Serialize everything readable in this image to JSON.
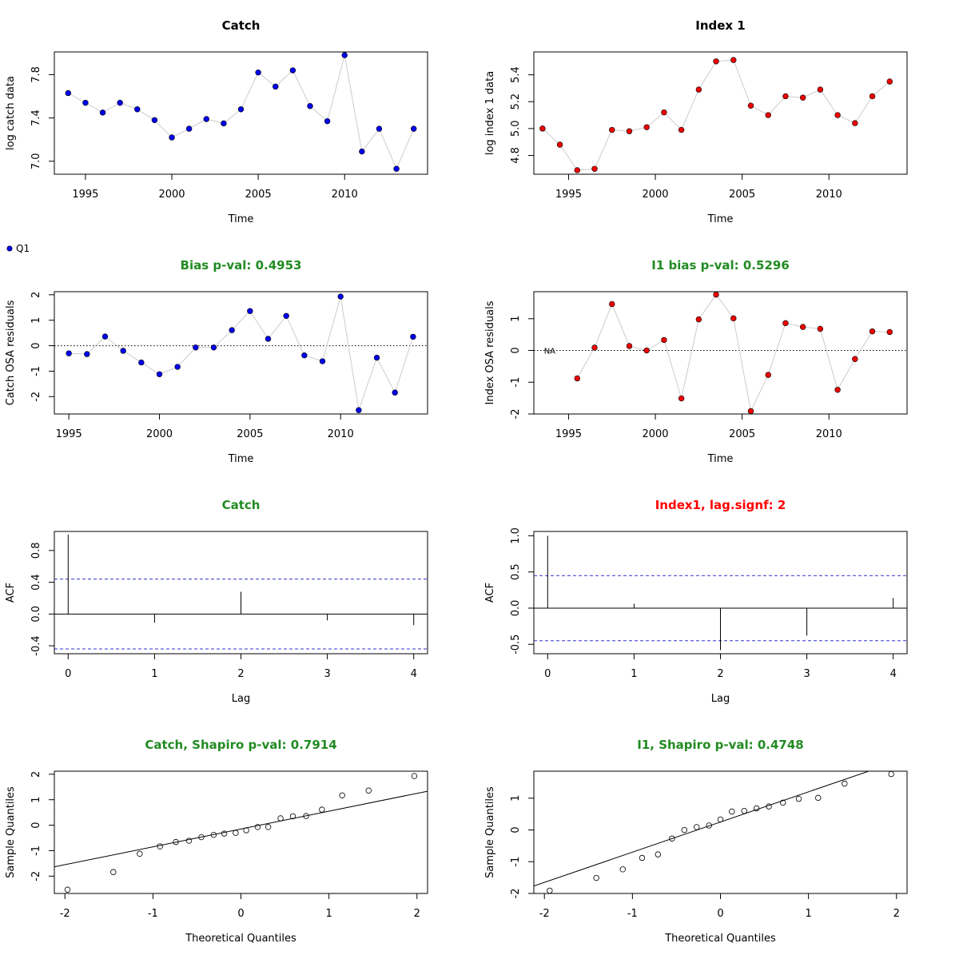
{
  "legend": {
    "label": "Q1",
    "color": "#0000ee",
    "placement": "top-left of second row"
  },
  "colors": {
    "catch_point": "#0000ee",
    "index_point": "#ee0000",
    "good_title": "#228b22",
    "bad_title": "#ff0000",
    "connector": "#cccccc",
    "ci_line": "#3333cc"
  },
  "chart_data": [
    {
      "id": "catch-data",
      "type": "line",
      "title": "Catch",
      "title_color": "#000000",
      "xlabel": "Time",
      "ylabel": "log catch data",
      "xlim": [
        1993.2,
        2014.8
      ],
      "ylim": [
        6.88,
        8.01
      ],
      "xticks": [
        1995,
        2000,
        2005,
        2010
      ],
      "xtick_labels": [
        "1995",
        "2000",
        "2005",
        "2010"
      ],
      "yticks": [
        7.0,
        7.4,
        7.8
      ],
      "ytick_labels": [
        "7.0",
        "7.4",
        "7.8"
      ],
      "point_color": "#0000ee",
      "series": [
        {
          "x": [
            1994,
            1995,
            1996,
            1997,
            1998,
            1999,
            2000,
            2001,
            2002,
            2003,
            2004,
            2005,
            2006,
            2007,
            2008,
            2009,
            2010,
            2011,
            2012,
            2013,
            2014
          ],
          "y": [
            7.63,
            7.54,
            7.45,
            7.54,
            7.48,
            7.38,
            7.22,
            7.3,
            7.39,
            7.35,
            7.48,
            7.82,
            7.69,
            7.84,
            7.51,
            7.37,
            7.98,
            7.09,
            7.3,
            6.93,
            7.3
          ]
        }
      ]
    },
    {
      "id": "index-data",
      "type": "line",
      "title": "Index 1",
      "title_color": "#000000",
      "xlabel": "Time",
      "ylabel": "log index 1 data",
      "xlim": [
        1993.0,
        2014.5
      ],
      "ylim": [
        4.66,
        5.57
      ],
      "xticks": [
        1995,
        2000,
        2005,
        2010
      ],
      "xtick_labels": [
        "1995",
        "2000",
        "2005",
        "2010"
      ],
      "yticks": [
        4.8,
        5.0,
        5.2,
        5.4
      ],
      "ytick_labels": [
        "4.8",
        "5.0",
        "5.2",
        "5.4"
      ],
      "point_color": "#ee0000",
      "series": [
        {
          "x": [
            1993.5,
            1994.5,
            1995.5,
            1996.5,
            1997.5,
            1998.5,
            1999.5,
            2000.5,
            2001.5,
            2002.5,
            2003.5,
            2004.5,
            2005.5,
            2006.5,
            2007.5,
            2008.5,
            2009.5,
            2010.5,
            2011.5,
            2012.5,
            2013.5
          ],
          "y": [
            5.0,
            4.88,
            4.69,
            4.7,
            4.99,
            4.98,
            5.01,
            5.12,
            4.99,
            5.29,
            5.5,
            5.51,
            5.17,
            5.1,
            5.24,
            5.23,
            5.29,
            5.1,
            5.04,
            5.24,
            5.35
          ]
        }
      ]
    },
    {
      "id": "catch-resid",
      "type": "line",
      "title": "Bias p-val: 0.4953",
      "title_color": "#228b22",
      "xlabel": "Time",
      "ylabel": "Catch OSA residuals",
      "xlim": [
        1994.2,
        2014.8
      ],
      "ylim": [
        -2.68,
        2.12
      ],
      "xticks": [
        1995,
        2000,
        2005,
        2010
      ],
      "xtick_labels": [
        "1995",
        "2000",
        "2005",
        "2010"
      ],
      "yticks": [
        -2,
        -1,
        0,
        1,
        2
      ],
      "ytick_labels": [
        "-2",
        "-1",
        "0",
        "1",
        "2"
      ],
      "point_color": "#0000ee",
      "hline": 0,
      "series": [
        {
          "x": [
            1995,
            1996,
            1997,
            1998,
            1999,
            2000,
            2001,
            2002,
            2003,
            2004,
            2005,
            2006,
            2007,
            2008,
            2009,
            2010,
            2011,
            2012,
            2013,
            2014
          ],
          "y": [
            -0.3,
            -0.33,
            0.36,
            -0.2,
            -0.66,
            -1.12,
            -0.83,
            -0.07,
            -0.07,
            0.61,
            1.36,
            0.27,
            1.17,
            -0.38,
            -0.61,
            1.93,
            -2.53,
            -0.47,
            -1.84,
            0.35
          ]
        }
      ]
    },
    {
      "id": "index-resid",
      "type": "line",
      "title": "I1 bias p-val: 0.5296",
      "title_color": "#228b22",
      "xlabel": "Time",
      "ylabel": "Index OSA residuals",
      "xlim": [
        1993.0,
        2014.5
      ],
      "ylim": [
        -2.0,
        1.85
      ],
      "xticks": [
        1995,
        2000,
        2005,
        2010
      ],
      "xtick_labels": [
        "1995",
        "2000",
        "2005",
        "2010"
      ],
      "yticks": [
        -2,
        -1,
        0,
        1
      ],
      "ytick_labels": [
        "-2",
        "-1",
        "0",
        "1"
      ],
      "point_color": "#ee0000",
      "hline": 0,
      "annotation": {
        "text": "NA",
        "x": 1993.4,
        "y": 0
      },
      "series": [
        {
          "x": [
            1995.5,
            1996.5,
            1997.5,
            1998.5,
            1999.5,
            2000.5,
            2001.5,
            2002.5,
            2003.5,
            2004.5,
            2005.5,
            2006.5,
            2007.5,
            2008.5,
            2009.5,
            2010.5,
            2011.5,
            2012.5,
            2013.5
          ],
          "y": [
            -0.88,
            0.09,
            1.46,
            0.14,
            0.0,
            0.33,
            -1.51,
            0.98,
            1.76,
            1.01,
            -1.91,
            -0.77,
            0.86,
            0.74,
            0.68,
            -1.24,
            -0.27,
            0.6,
            0.58
          ]
        }
      ]
    },
    {
      "id": "catch-acf",
      "type": "bar",
      "title": "Catch",
      "title_color": "#228b22",
      "xlabel": "Lag",
      "ylabel": "ACF",
      "xlim": [
        -0.16,
        4.16
      ],
      "ylim": [
        -0.5,
        1.04
      ],
      "xticks": [
        0,
        1,
        2,
        3,
        4
      ],
      "xtick_labels": [
        "0",
        "1",
        "2",
        "3",
        "4"
      ],
      "yticks": [
        -0.4,
        0.0,
        0.4,
        0.8
      ],
      "ytick_labels": [
        "-0.4",
        "0.0",
        "0.4",
        "0.8"
      ],
      "hline": 0,
      "ci": 0.44,
      "lags": [
        0,
        1,
        2,
        3,
        4
      ],
      "values": [
        1.0,
        -0.11,
        0.28,
        -0.08,
        -0.14
      ]
    },
    {
      "id": "index-acf",
      "type": "bar",
      "title": "Index1, lag.signf: 2",
      "title_color": "#ff0000",
      "xlabel": "Lag",
      "ylabel": "ACF",
      "xlim": [
        -0.16,
        4.16
      ],
      "ylim": [
        -0.63,
        1.06
      ],
      "xticks": [
        0,
        1,
        2,
        3,
        4
      ],
      "xtick_labels": [
        "0",
        "1",
        "2",
        "3",
        "4"
      ],
      "yticks": [
        -0.5,
        0.0,
        0.5,
        1.0
      ],
      "ytick_labels": [
        "-0.5",
        "0.0",
        "0.5",
        "1.0"
      ],
      "hline": 0,
      "ci": 0.45,
      "lags": [
        0,
        1,
        2,
        3,
        4
      ],
      "values": [
        1.0,
        0.06,
        -0.58,
        -0.38,
        0.14
      ]
    },
    {
      "id": "catch-qq",
      "type": "scatter",
      "title": "Catch, Shapiro p-val: 0.7914",
      "title_color": "#228b22",
      "xlabel": "Theoretical Quantiles",
      "ylabel": "Sample Quantiles",
      "xlim": [
        -2.12,
        2.12
      ],
      "ylim": [
        -2.68,
        2.12
      ],
      "xticks": [
        -2,
        -1,
        0,
        1,
        2
      ],
      "xtick_labels": [
        "-2",
        "-1",
        "0",
        "1",
        "2"
      ],
      "yticks": [
        -2,
        -1,
        0,
        1,
        2
      ],
      "ytick_labels": [
        "-2",
        "-1",
        "0",
        "1",
        "2"
      ],
      "qqline": {
        "intercept": -0.15,
        "slope": 0.7
      },
      "x": [
        -1.97,
        -1.45,
        -1.15,
        -0.92,
        -0.74,
        -0.59,
        -0.45,
        -0.31,
        -0.19,
        -0.06,
        0.06,
        0.19,
        0.31,
        0.45,
        0.59,
        0.74,
        0.92,
        1.15,
        1.45,
        1.97
      ],
      "y": [
        -2.53,
        -1.84,
        -1.12,
        -0.83,
        -0.66,
        -0.61,
        -0.47,
        -0.38,
        -0.33,
        -0.3,
        -0.2,
        -0.07,
        -0.07,
        0.27,
        0.35,
        0.36,
        0.61,
        1.17,
        1.36,
        1.93
      ]
    },
    {
      "id": "index-qq",
      "type": "scatter",
      "title": "I1, Shapiro p-val: 0.4748",
      "title_color": "#228b22",
      "xlabel": "Theoretical Quantiles",
      "ylabel": "Sample Quantiles",
      "xlim": [
        -2.12,
        2.12
      ],
      "ylim": [
        -2.0,
        1.85
      ],
      "xticks": [
        -2,
        -1,
        0,
        1,
        2
      ],
      "xtick_labels": [
        "-2",
        "-1",
        "0",
        "1",
        "2"
      ],
      "yticks": [
        -2,
        -1,
        0,
        1
      ],
      "ytick_labels": [
        "-2",
        "-1",
        "0",
        "1"
      ],
      "qqline": {
        "intercept": 0.25,
        "slope": 0.95
      },
      "x": [
        -1.94,
        -1.41,
        -1.11,
        -0.89,
        -0.71,
        -0.55,
        -0.41,
        -0.27,
        -0.13,
        0.0,
        0.13,
        0.27,
        0.41,
        0.55,
        0.71,
        0.89,
        1.11,
        1.41,
        1.94
      ],
      "y": [
        -1.91,
        -1.51,
        -1.24,
        -0.88,
        -0.77,
        -0.27,
        0.0,
        0.09,
        0.14,
        0.33,
        0.58,
        0.6,
        0.68,
        0.74,
        0.86,
        0.98,
        1.01,
        1.46,
        1.76
      ]
    }
  ]
}
